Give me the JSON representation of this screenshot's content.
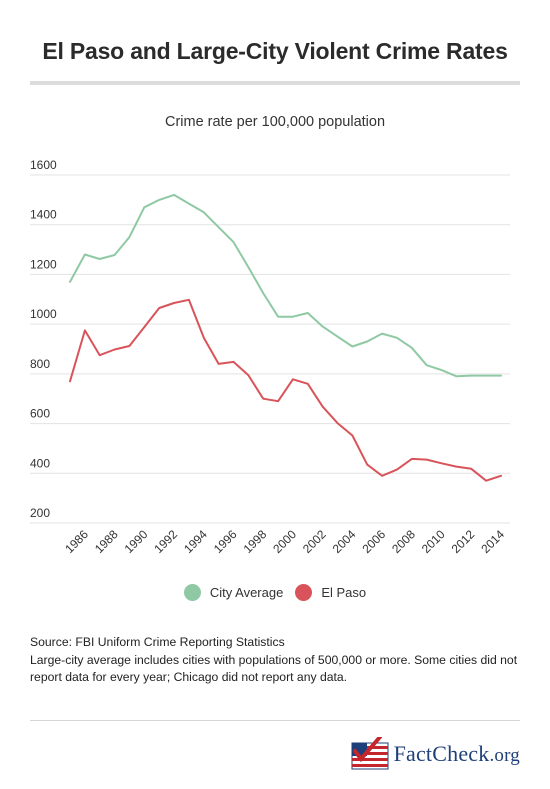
{
  "title": "El Paso and Large-City Violent Crime Rates",
  "subtitle": "Crime rate per 100,000 population",
  "legend": [
    {
      "label": "City Average",
      "color": "#8fc9a3"
    },
    {
      "label": "El Paso",
      "color": "#d9545a"
    }
  ],
  "source": {
    "line1": "Source: FBI Uniform Crime Reporting Statistics",
    "line2": "Large-city average includes cities with populations of 500,000 or more. Some cities did not report data for every year; Chicago did not report any data."
  },
  "logo": {
    "text_main": "FactCheck",
    "text_suffix": ".org",
    "icon": "flag-check-logo"
  },
  "chart_data": {
    "type": "line",
    "x": [
      1985,
      1986,
      1987,
      1988,
      1989,
      1990,
      1991,
      1992,
      1993,
      1994,
      1995,
      1996,
      1997,
      1998,
      1999,
      2000,
      2001,
      2002,
      2003,
      2004,
      2005,
      2006,
      2007,
      2008,
      2009,
      2010,
      2011,
      2012,
      2013,
      2014
    ],
    "xticks": [
      "1986",
      "1988",
      "1990",
      "1992",
      "1994",
      "1996",
      "1998",
      "2000",
      "2002",
      "2004",
      "2006",
      "2008",
      "2010",
      "2012",
      "2014"
    ],
    "yticks": [
      "200",
      "400",
      "600",
      "800",
      "1000",
      "1200",
      "1400",
      "1600"
    ],
    "ylim": [
      200,
      1600
    ],
    "grid": true,
    "series": [
      {
        "name": "City Average",
        "color": "#8fc9a3",
        "values": [
          1170,
          1280,
          1262,
          1278,
          1350,
          1470,
          1500,
          1520,
          1485,
          1450,
          1390,
          1330,
          1230,
          1125,
          1030,
          1030,
          1045,
          990,
          950,
          910,
          930,
          962,
          945,
          905,
          835,
          815,
          790,
          793,
          793,
          793
        ]
      },
      {
        "name": "El Paso",
        "color": "#d9545a",
        "values": [
          770,
          975,
          875,
          898,
          912,
          988,
          1065,
          1085,
          1098,
          945,
          840,
          848,
          795,
          700,
          690,
          778,
          760,
          668,
          602,
          552,
          435,
          390,
          415,
          458,
          455,
          440,
          427,
          418,
          370,
          390
        ]
      }
    ]
  }
}
